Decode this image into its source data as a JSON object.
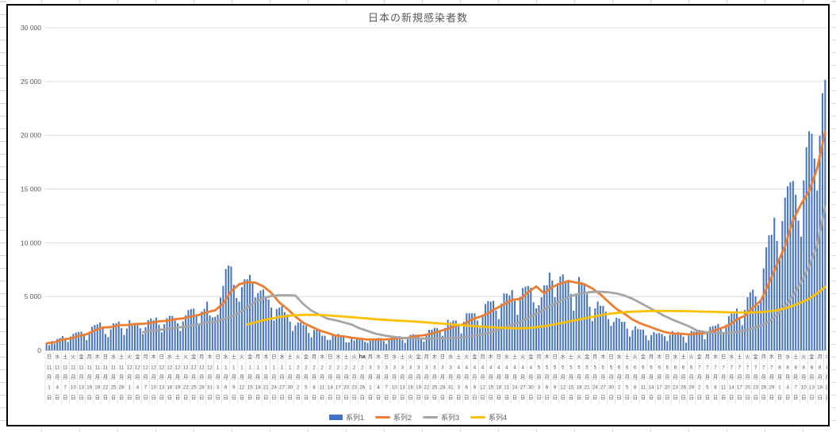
{
  "chart": {
    "title": "日本の新規感染者数",
    "y_axis": {
      "min": 0,
      "max": 30000,
      "step": 5000,
      "ticks": [
        {
          "value": 30000,
          "label": "30 000"
        },
        {
          "value": 25000,
          "label": "25 000"
        },
        {
          "value": 20000,
          "label": "20 000"
        },
        {
          "value": 15000,
          "label": "15 000"
        },
        {
          "value": 10000,
          "label": "10 000"
        },
        {
          "value": 5000,
          "label": "5 000"
        },
        {
          "value": 0,
          "label": "0"
        }
      ]
    },
    "legend": [
      {
        "label": "系列1",
        "color": "#4472C4",
        "swatch": "bar"
      },
      {
        "label": "系列2",
        "color": "#ED7D31",
        "swatch": "line"
      },
      {
        "label": "系列3",
        "color": "#A5A5A5",
        "swatch": "line"
      },
      {
        "label": "系列4",
        "color": "#FFC000",
        "swatch": "line"
      }
    ],
    "colors": {
      "gridline": "#D9D9D9",
      "axis_line": "#BFBFBF",
      "axis_text": "#595959",
      "title_text": "#595959",
      "chart_border": "#000000",
      "label_separator": "#D9D9D9"
    },
    "axis_overlay_text": "ha",
    "x_label_row_suffixes": [
      "月",
      "日"
    ]
  },
  "chart_data": {
    "type": "bar",
    "combo": "bar + 3 lines",
    "x_label_interval_days": 3,
    "x_labels": [
      [
        "日",
        11,
        1
      ],
      [
        "水",
        11,
        4
      ],
      [
        "土",
        11,
        7
      ],
      [
        "火",
        11,
        10
      ],
      [
        "金",
        11,
        13
      ],
      [
        "月",
        11,
        16
      ],
      [
        "木",
        11,
        19
      ],
      [
        "日",
        11,
        22
      ],
      [
        "水",
        11,
        25
      ],
      [
        "土",
        11,
        28
      ],
      [
        "火",
        12,
        1
      ],
      [
        "金",
        12,
        4
      ],
      [
        "月",
        12,
        7
      ],
      [
        "木",
        12,
        10
      ],
      [
        "日",
        12,
        13
      ],
      [
        "水",
        12,
        16
      ],
      [
        "土",
        12,
        19
      ],
      [
        "火",
        12,
        22
      ],
      [
        "金",
        12,
        25
      ],
      [
        "月",
        12,
        28
      ],
      [
        "木",
        12,
        31
      ],
      [
        "日",
        1,
        3
      ],
      [
        "水",
        1,
        6
      ],
      [
        "土",
        1,
        9
      ],
      [
        "火",
        1,
        12
      ],
      [
        "金",
        1,
        15
      ],
      [
        "月",
        1,
        18
      ],
      [
        "木",
        1,
        21
      ],
      [
        "日",
        1,
        24
      ],
      [
        "水",
        1,
        27
      ],
      [
        "土",
        1,
        30
      ],
      [
        "火",
        2,
        2
      ],
      [
        "金",
        2,
        5
      ],
      [
        "月",
        2,
        8
      ],
      [
        "木",
        2,
        11
      ],
      [
        "日",
        2,
        14
      ],
      [
        "水",
        2,
        17
      ],
      [
        "土",
        2,
        20
      ],
      [
        "火",
        2,
        23
      ],
      [
        "ha",
        2,
        26
      ],
      [
        "月",
        3,
        1
      ],
      [
        "木",
        3,
        4
      ],
      [
        "日",
        3,
        7
      ],
      [
        "水",
        3,
        10
      ],
      [
        "土",
        3,
        13
      ],
      [
        "火",
        3,
        16
      ],
      [
        "金",
        3,
        19
      ],
      [
        "月",
        3,
        22
      ],
      [
        "木",
        3,
        25
      ],
      [
        "日",
        3,
        28
      ],
      [
        "水",
        3,
        31
      ],
      [
        "土",
        4,
        3
      ],
      [
        "火",
        4,
        6
      ],
      [
        "金",
        4,
        9
      ],
      [
        "月",
        4,
        12
      ],
      [
        "木",
        4,
        15
      ],
      [
        "日",
        4,
        18
      ],
      [
        "水",
        4,
        21
      ],
      [
        "土",
        4,
        24
      ],
      [
        "火",
        4,
        27
      ],
      [
        "金",
        4,
        30
      ],
      [
        "月",
        5,
        3
      ],
      [
        "木",
        5,
        6
      ],
      [
        "日",
        5,
        9
      ],
      [
        "水",
        5,
        12
      ],
      [
        "土",
        5,
        15
      ],
      [
        "火",
        5,
        18
      ],
      [
        "金",
        5,
        21
      ],
      [
        "月",
        5,
        24
      ],
      [
        "木",
        5,
        27
      ],
      [
        "日",
        5,
        30
      ],
      [
        "水",
        6,
        2
      ],
      [
        "土",
        6,
        5
      ],
      [
        "火",
        6,
        8
      ],
      [
        "金",
        6,
        11
      ],
      [
        "月",
        6,
        14
      ],
      [
        "木",
        6,
        17
      ],
      [
        "日",
        6,
        20
      ],
      [
        "水",
        6,
        23
      ],
      [
        "土",
        6,
        26
      ],
      [
        "火",
        6,
        29
      ],
      [
        "金",
        7,
        2
      ],
      [
        "月",
        7,
        5
      ],
      [
        "木",
        7,
        8
      ],
      [
        "日",
        7,
        11
      ],
      [
        "水",
        7,
        14
      ],
      [
        "土",
        7,
        17
      ],
      [
        "火",
        7,
        20
      ],
      [
        "金",
        7,
        23
      ],
      [
        "月",
        7,
        26
      ],
      [
        "木",
        7,
        29
      ],
      [
        "日",
        8,
        1
      ],
      [
        "水",
        8,
        4
      ],
      [
        "土",
        8,
        7
      ],
      [
        "火",
        8,
        10
      ],
      [
        "金",
        8,
        13
      ],
      [
        "月",
        8,
        16
      ],
      [
        "木",
        8,
        19
      ]
    ],
    "series": [
      {
        "name": "系列1",
        "type": "bar",
        "color": "#4472C4",
        "resolution": "daily",
        "values": [
          614,
          480,
          867,
          620,
          1050,
          1141,
          1331,
          958,
          780,
          1284,
          1543,
          1650,
          1704,
          1737,
          1440,
          950,
          1699,
          2191,
          2363,
          2418,
          2586,
          2168,
          1515,
          1229,
          1946,
          2499,
          2525,
          2674,
          2067,
          1438,
          2030,
          2811,
          2518,
          2442,
          2508,
          2058,
          1515,
          2152,
          2811,
          2971,
          2790,
          3041,
          2388,
          1675,
          2432,
          2981,
          3211,
          3206,
          2982,
          2508,
          1805,
          2688,
          3271,
          3742,
          3832,
          3881,
          3261,
          2511,
          3606,
          3852,
          4520,
          3246,
          3059,
          3127,
          3325,
          4915,
          6001,
          7563,
          7882,
          7790,
          6096,
          4875,
          4527,
          5870,
          6610,
          6607,
          7014,
          6220,
          4925,
          5320,
          5549,
          5663,
          5046,
          4717,
          3990,
          2764,
          3853,
          3971,
          4133,
          3539,
          3344,
          2674,
          1792,
          2324,
          2585,
          2577,
          2372,
          2279,
          1632,
          1216,
          1887,
          1891,
          1933,
          1358,
          1362,
          965,
          966,
          1445,
          1448,
          1538,
          1304,
          1233,
          751,
          740,
          1085,
          919,
          1077,
          1038,
          999,
          791,
          697,
          886,
          1121,
          1054,
          1148,
          1144,
          866,
          599,
          973,
          1317,
          1325,
          1271,
          1319,
          988,
          695,
          1133,
          1448,
          1500,
          1463,
          1467,
          1121,
          804,
          1504,
          1917,
          1931,
          2086,
          2070,
          1785,
          1348,
          2087,
          2843,
          2601,
          2776,
          2774,
          2472,
          1571,
          2654,
          3445,
          3450,
          3441,
          3438,
          2777,
          2090,
          3287,
          4312,
          4576,
          4532,
          4608,
          3697,
          2908,
          4342,
          5291,
          5283,
          5113,
          5605,
          4605,
          3318,
          4964,
          5792,
          5918,
          5986,
          5827,
          4471,
          3901,
          4199,
          4935,
          6055,
          6057,
          7244,
          6493,
          4936,
          6242,
          6871,
          7057,
          6263,
          6421,
          5247,
          3679,
          5229,
          6832,
          6344,
          6252,
          5249,
          4048,
          2715,
          3904,
          4536,
          4141,
          4138,
          3601,
          2899,
          2278,
          2640,
          3035,
          2954,
          2645,
          2653,
          2020,
          1277,
          1884,
          2241,
          1981,
          1937,
          1937,
          1385,
          938,
          1420,
          1708,
          1554,
          1605,
          1521,
          1307,
          868,
          1437,
          1779,
          1661,
          1704,
          1512,
          1277,
          714,
          1382,
          1817,
          1754,
          1774,
          1879,
          1483,
          1029,
          1673,
          2191,
          2248,
          2279,
          2458,
          1953,
          1506,
          2386,
          3194,
          3418,
          3422,
          3886,
          3103,
          2329,
          3758,
          4943,
          5397,
          5653,
          5020,
          4204,
          4692,
          7629,
          9576,
          10699,
          10743,
          12341,
          10177,
          8393,
          12017,
          14207,
          15263,
          15645,
          15753,
          14472,
          12073,
          10574,
          15812,
          18892,
          20365,
          20151,
          17832,
          14854,
          19955,
          23917,
          25156
        ]
      },
      {
        "name": "系列2",
        "type": "line",
        "color": "#ED7D31",
        "resolution": "every_3_days",
        "values": [
          640,
          760,
          1000,
          1110,
          1350,
          1500,
          1850,
          2120,
          2150,
          2350,
          2350,
          2450,
          2470,
          2550,
          2700,
          2750,
          2900,
          2980,
          3150,
          3300,
          3550,
          3720,
          4350,
          5500,
          6150,
          6350,
          6300,
          5950,
          5350,
          4450,
          3850,
          3150,
          2550,
          2200,
          1850,
          1620,
          1370,
          1300,
          1180,
          1080,
          1000,
          1010,
          1000,
          1060,
          1130,
          1160,
          1330,
          1400,
          1560,
          1790,
          2000,
          2300,
          2420,
          2880,
          3130,
          3440,
          3900,
          4280,
          4700,
          4780,
          5400,
          5950,
          5300,
          5900,
          6200,
          6450,
          6300,
          6150,
          5750,
          5200,
          4500,
          3850,
          3400,
          2870,
          2500,
          2230,
          1960,
          1700,
          1560,
          1550,
          1480,
          1550,
          1600,
          1780,
          2050,
          2320,
          2880,
          3220,
          3980,
          4640,
          6260,
          8000,
          9700,
          12100,
          13600,
          14800,
          16900,
          20320
        ]
      },
      {
        "name": "系列3",
        "type": "line",
        "color": "#A5A5A5",
        "resolution": "every_3_days",
        "values": [
          null,
          null,
          null,
          null,
          null,
          null,
          null,
          null,
          null,
          null,
          null,
          null,
          1700,
          1820,
          1900,
          2000,
          2080,
          2180,
          2280,
          2400,
          2600,
          2650,
          2900,
          3150,
          3500,
          4000,
          4500,
          4850,
          5050,
          5120,
          5130,
          5100,
          4300,
          3700,
          3300,
          2950,
          2800,
          2600,
          2400,
          2050,
          1800,
          1550,
          1400,
          1280,
          1180,
          1120,
          1090,
          1090,
          1100,
          1120,
          1140,
          1170,
          1220,
          1320,
          1450,
          1620,
          1820,
          2070,
          2350,
          2650,
          3000,
          3400,
          3800,
          4200,
          4600,
          4950,
          5200,
          5350,
          5430,
          5450,
          5400,
          5300,
          5100,
          4800,
          4400,
          4000,
          3600,
          3200,
          2850,
          2550,
          2250,
          1850,
          1700,
          1620,
          1600,
          1620,
          1700,
          1850,
          2050,
          2300,
          2700,
          3300,
          4100,
          5100,
          6300,
          7800,
          9800,
          13300
        ]
      },
      {
        "name": "系列4",
        "type": "line",
        "color": "#FFC000",
        "resolution": "every_3_days",
        "values": [
          null,
          null,
          null,
          null,
          null,
          null,
          null,
          null,
          null,
          null,
          null,
          null,
          null,
          null,
          null,
          null,
          null,
          null,
          null,
          null,
          null,
          null,
          null,
          null,
          null,
          2400,
          2600,
          2800,
          2950,
          3100,
          3200,
          3270,
          3300,
          3310,
          3290,
          3250,
          3200,
          3150,
          3080,
          3020,
          2960,
          2900,
          2850,
          2800,
          2760,
          2720,
          2670,
          2620,
          2560,
          2500,
          2440,
          2380,
          2320,
          2270,
          2220,
          2170,
          2130,
          2090,
          2060,
          2050,
          2080,
          2150,
          2250,
          2380,
          2520,
          2670,
          2820,
          2970,
          3120,
          3260,
          3390,
          3480,
          3550,
          3600,
          3630,
          3650,
          3660,
          3660,
          3655,
          3650,
          3640,
          3620,
          3600,
          3580,
          3560,
          3540,
          3530,
          3520,
          3530,
          3560,
          3620,
          3720,
          3900,
          4150,
          4450,
          4800,
          5300,
          5900
        ]
      }
    ]
  }
}
